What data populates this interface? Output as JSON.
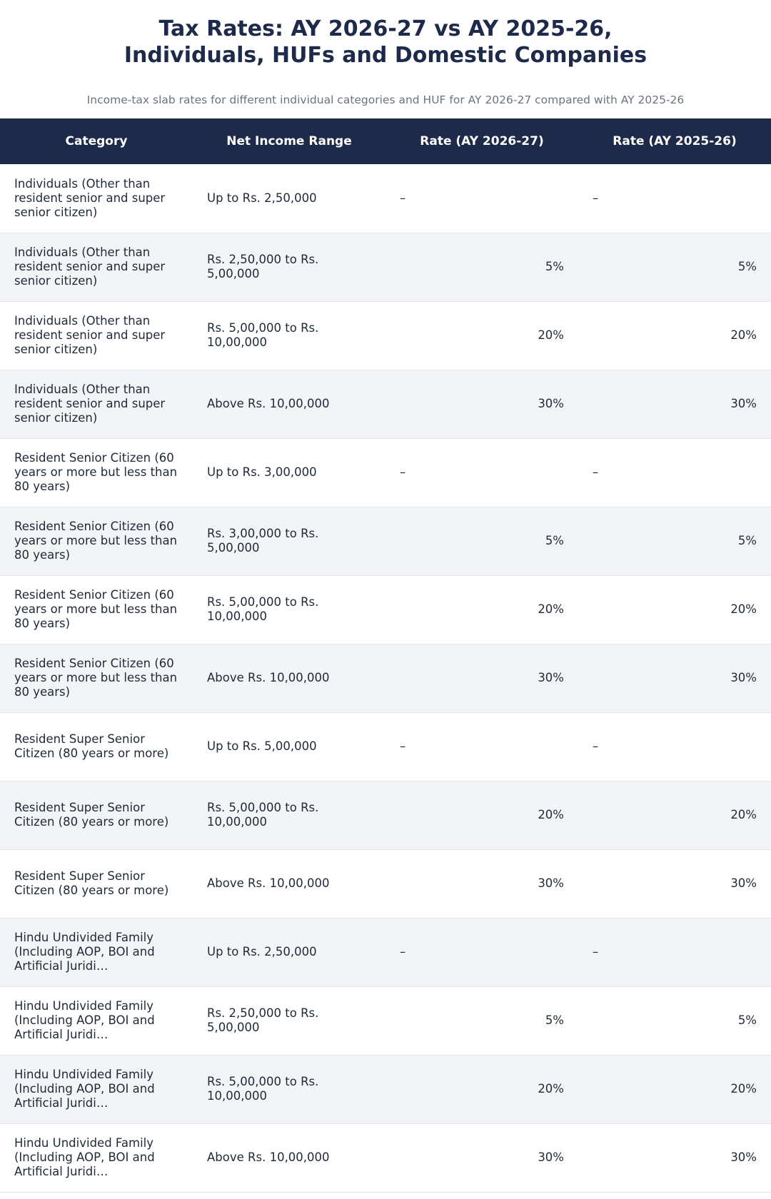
{
  "title_line1": "Tax Rates: AY 2026-27 vs AY 2025-26,",
  "title_line2": "Individuals, HUFs and Domestic Companies",
  "subtitle": "Income-tax slab rates for different individual categories and HUF for AY 2026-27 compared with AY 2025-26",
  "colors": {
    "header_bg": "#1e2a4a",
    "row_alt_bg": "#f3f4f6",
    "title_color": "#1e2a4a"
  },
  "columns": [
    "Category",
    "Net Income Range",
    "Rate (AY 2026-27)",
    "Rate (AY 2025-26)"
  ],
  "rows": [
    {
      "category": "Individuals (Other than resident senior and super senior citizen)",
      "range": "Up to Rs. 2,50,000",
      "rate_2026": "–",
      "rate_2025": "–"
    },
    {
      "category": "Individuals (Other than resident senior and super senior citizen)",
      "range": "Rs. 2,50,000 to Rs. 5,00,000",
      "rate_2026": "5%",
      "rate_2025": "5%"
    },
    {
      "category": "Individuals (Other than resident senior and super senior citizen)",
      "range": "Rs. 5,00,000 to Rs. 10,00,000",
      "rate_2026": "20%",
      "rate_2025": "20%"
    },
    {
      "category": "Individuals (Other than resident senior and super senior citizen)",
      "range": "Above Rs. 10,00,000",
      "rate_2026": "30%",
      "rate_2025": "30%"
    },
    {
      "category": "Resident Senior Citizen (60 years or more but less than 80 years)",
      "range": "Up to Rs. 3,00,000",
      "rate_2026": "–",
      "rate_2025": "–"
    },
    {
      "category": "Resident Senior Citizen (60 years or more but less than 80 years)",
      "range": "Rs. 3,00,000 to Rs. 5,00,000",
      "rate_2026": "5%",
      "rate_2025": "5%"
    },
    {
      "category": "Resident Senior Citizen (60 years or more but less than 80 years)",
      "range": "Rs. 5,00,000 to Rs. 10,00,000",
      "rate_2026": "20%",
      "rate_2025": "20%"
    },
    {
      "category": "Resident Senior Citizen (60 years or more but less than 80 years)",
      "range": "Above Rs. 10,00,000",
      "rate_2026": "30%",
      "rate_2025": "30%"
    },
    {
      "category": "Resident Super Senior Citizen (80 years or more)",
      "range": "Up to Rs. 5,00,000",
      "rate_2026": "–",
      "rate_2025": "–"
    },
    {
      "category": "Resident Super Senior Citizen (80 years or more)",
      "range": "Rs. 5,00,000 to Rs. 10,00,000",
      "rate_2026": "20%",
      "rate_2025": "20%"
    },
    {
      "category": "Resident Super Senior Citizen (80 years or more)",
      "range": "Above Rs. 10,00,000",
      "rate_2026": "30%",
      "rate_2025": "30%"
    },
    {
      "category": "Hindu Undivided Family (Including AOP, BOI and Artificial Juridi…",
      "range": "Up to Rs. 2,50,000",
      "rate_2026": "–",
      "rate_2025": "–"
    },
    {
      "category": "Hindu Undivided Family (Including AOP, BOI and Artificial Juridi…",
      "range": "Rs. 2,50,000 to Rs. 5,00,000",
      "rate_2026": "5%",
      "rate_2025": "5%"
    },
    {
      "category": "Hindu Undivided Family (Including AOP, BOI and Artificial Juridi…",
      "range": "Rs. 5,00,000 to Rs. 10,00,000",
      "rate_2026": "20%",
      "rate_2025": "20%"
    },
    {
      "category": "Hindu Undivided Family (Including AOP, BOI and Artificial Juridi…",
      "range": "Above Rs. 10,00,000",
      "rate_2026": "30%",
      "rate_2025": "30%"
    }
  ]
}
